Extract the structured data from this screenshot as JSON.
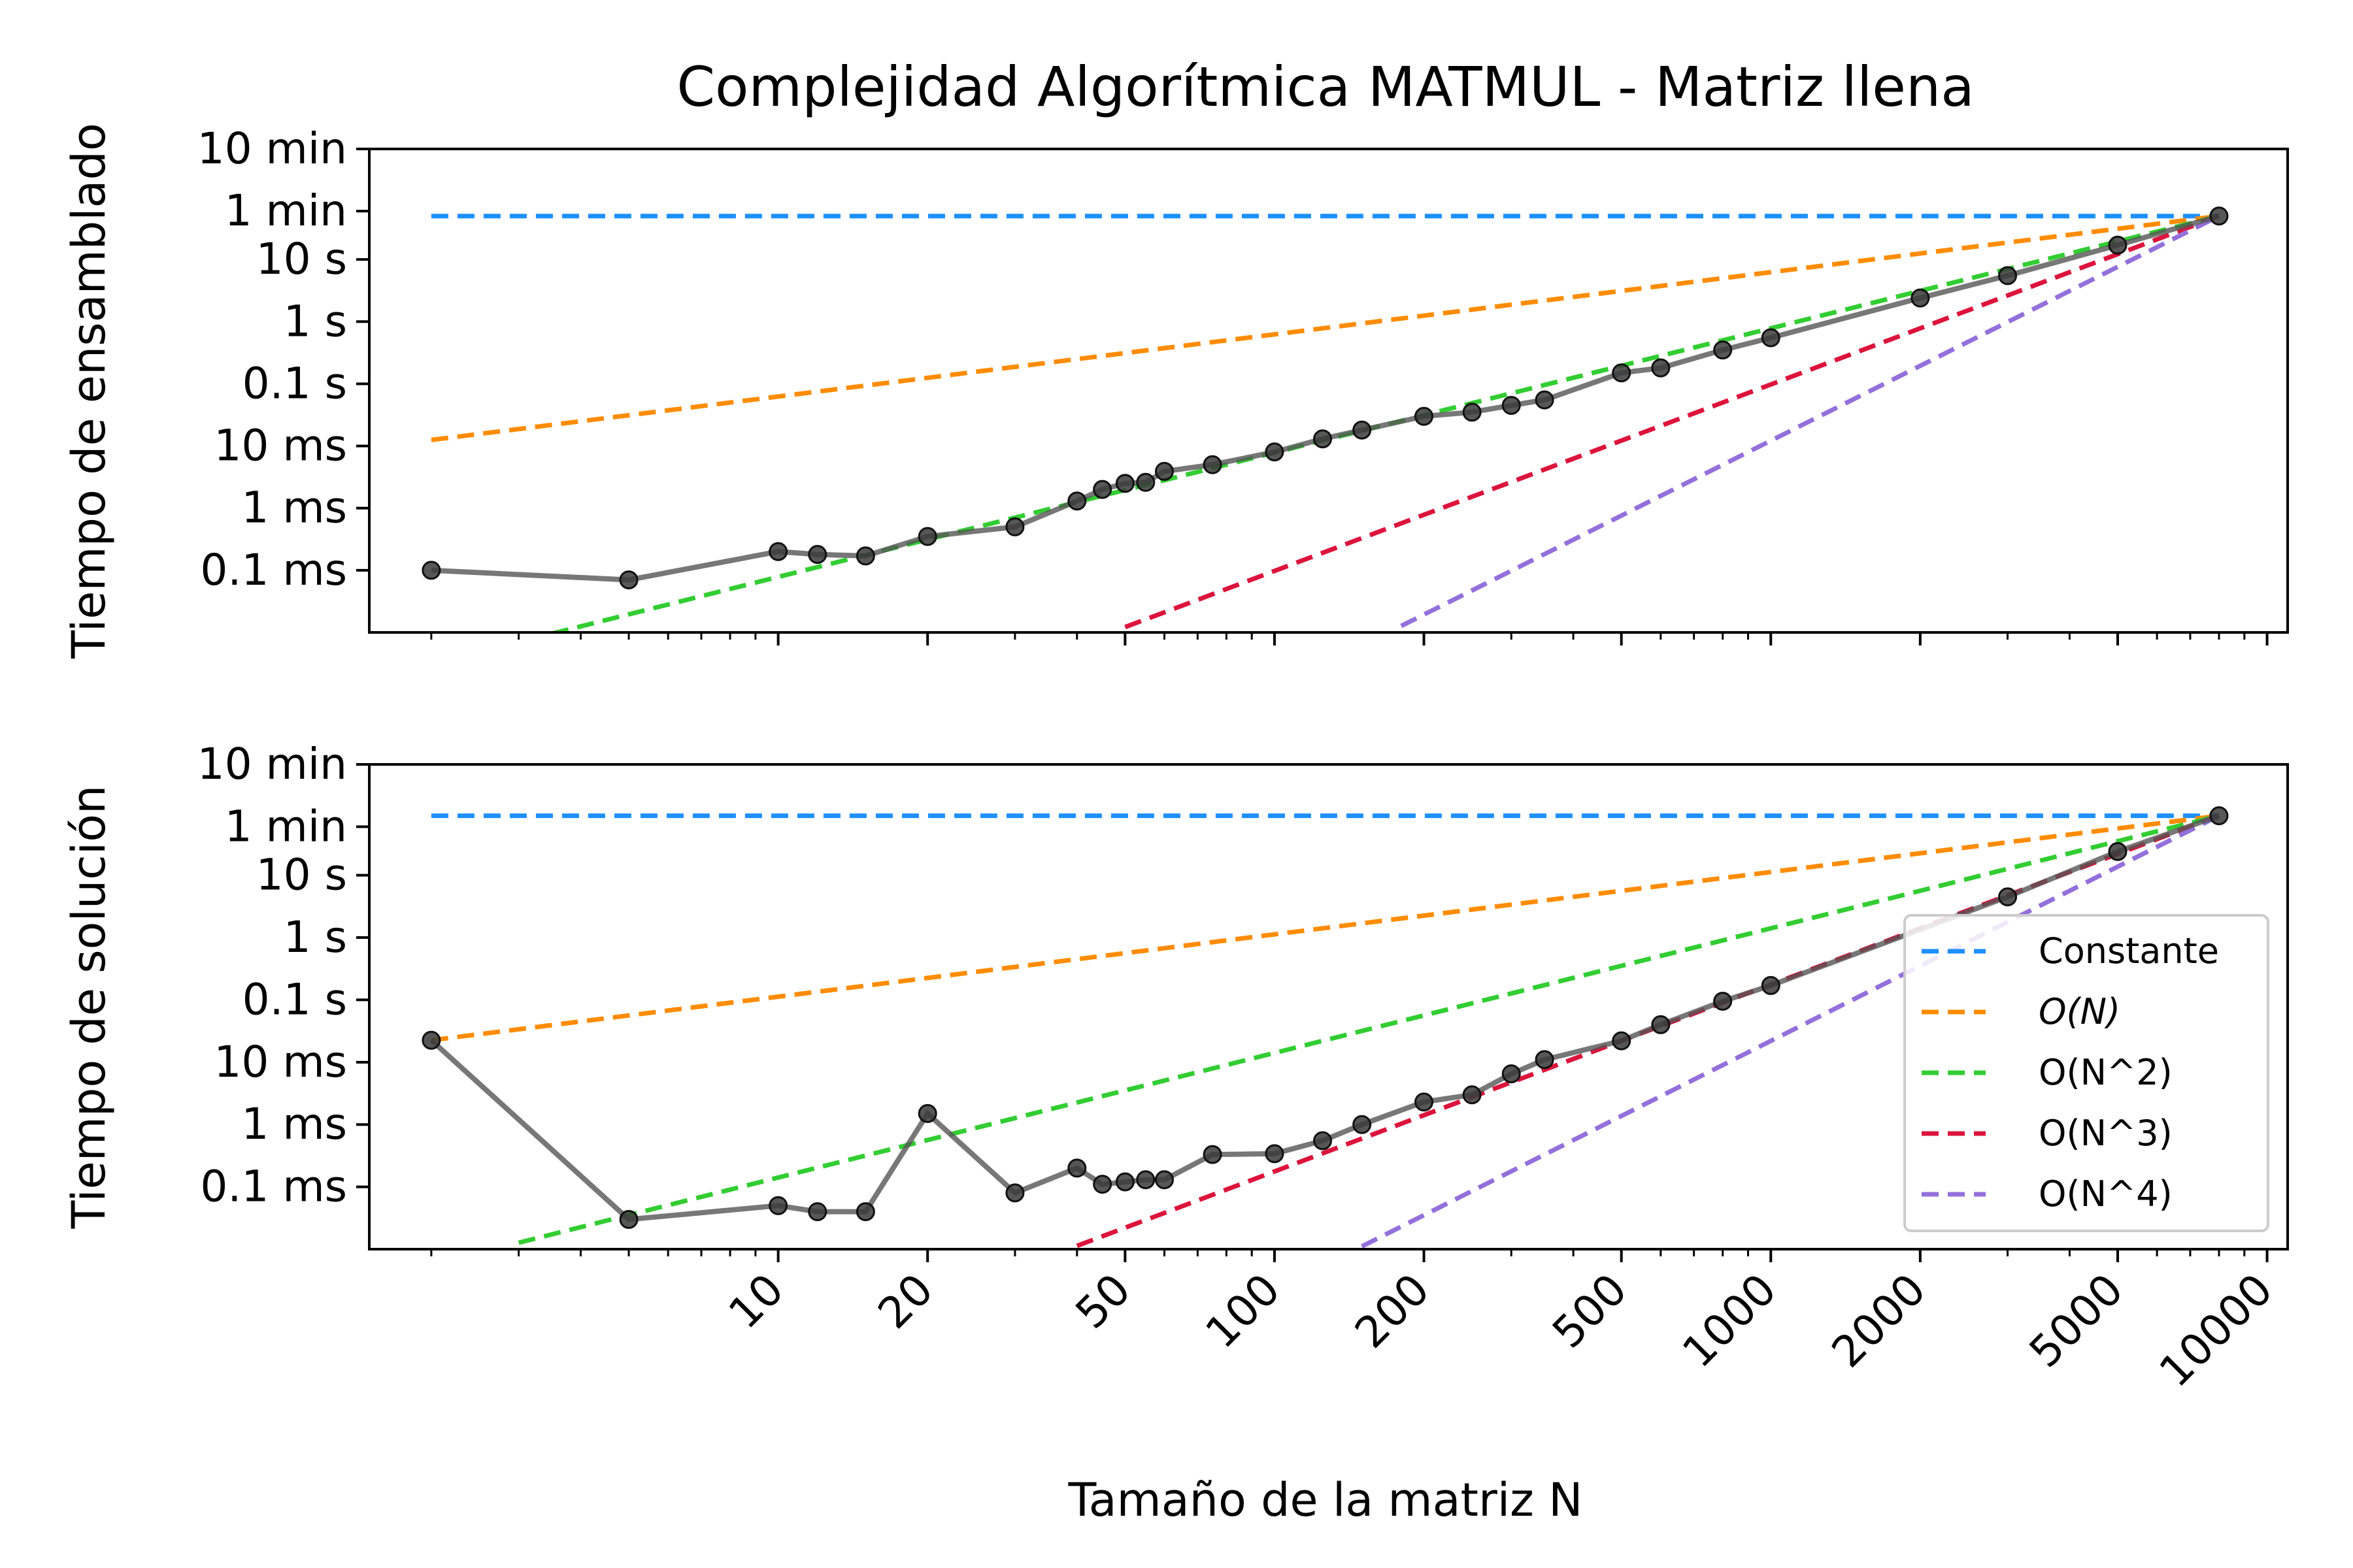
{
  "figure": {
    "title": "Complejidad Algorítmica MATMUL - Matriz llena",
    "xlabel": "Tamaño de la matriz N"
  },
  "chart_data": [
    {
      "type": "line",
      "panel": "top",
      "ylabel": "Tiempo de ensamblado",
      "x_scale": "log",
      "y_scale": "log",
      "xlim": [
        1.5,
        11000
      ],
      "ylim_seconds": [
        1e-05,
        600
      ],
      "xticks": [
        10,
        20,
        50,
        100,
        200,
        500,
        1000,
        2000,
        5000,
        10000
      ],
      "xtick_labels": [
        "10",
        "20",
        "50",
        "100",
        "200",
        "500",
        "1000",
        "2000",
        "5000",
        "10000"
      ],
      "yticks_seconds": [
        0.0001,
        0.001,
        0.01,
        0.1,
        1,
        10,
        60,
        600
      ],
      "ytick_labels": [
        "0.1 ms",
        "1 ms",
        "10 ms",
        "0.1 s",
        "1 s",
        "10 s",
        "1 min",
        "10 min"
      ],
      "grid": false,
      "legend": false,
      "series": [
        {
          "name": "Constante",
          "color": "#1e90ff",
          "dash": true,
          "x": [
            2,
            8000
          ],
          "y": [
            50,
            50
          ]
        },
        {
          "name": "O(N)",
          "color": "#ff8c00",
          "dash": true,
          "x": [
            2,
            8000
          ],
          "y": [
            0.0125,
            50
          ]
        },
        {
          "name": "O(N^2)",
          "color": "#32cd32",
          "dash": true,
          "x": [
            3.5,
            8000
          ],
          "y": [
            9.57e-06,
            50
          ]
        },
        {
          "name": "O(N^3)",
          "color": "#dc143c",
          "dash": true,
          "x": [
            50,
            8000
          ],
          "y": [
            1.22e-05,
            50
          ]
        },
        {
          "name": "O(N^4)",
          "color": "#9370db",
          "dash": true,
          "x": [
            180,
            8000
          ],
          "y": [
            1.27e-05,
            50
          ]
        },
        {
          "name": "",
          "color": "#555555",
          "dash": false,
          "markers": true,
          "x": [
            2,
            5,
            10,
            12,
            15,
            20,
            30,
            40,
            45,
            50,
            55,
            60,
            75,
            100,
            125,
            150,
            200,
            250,
            300,
            350,
            500,
            600,
            800,
            1000,
            2000,
            3000,
            5000,
            8000
          ],
          "y": [
            0.0001,
            7e-05,
            0.0002,
            0.00018,
            0.00017,
            0.00035,
            0.0005,
            0.0013,
            0.002,
            0.0025,
            0.0026,
            0.0039,
            0.005,
            0.008,
            0.013,
            0.018,
            0.03,
            0.035,
            0.045,
            0.055,
            0.15,
            0.18,
            0.35,
            0.55,
            2.4,
            5.5,
            17,
            50
          ]
        }
      ]
    },
    {
      "type": "line",
      "panel": "bottom",
      "ylabel": "Tiempo de solución",
      "x_scale": "log",
      "y_scale": "log",
      "xlim": [
        1.5,
        11000
      ],
      "ylim_seconds": [
        1e-05,
        600
      ],
      "xticks": [
        10,
        20,
        50,
        100,
        200,
        500,
        1000,
        2000,
        5000,
        10000
      ],
      "xtick_labels": [
        "10",
        "20",
        "50",
        "100",
        "200",
        "500",
        "1000",
        "2000",
        "5000",
        "10000"
      ],
      "yticks_seconds": [
        0.0001,
        0.001,
        0.01,
        0.1,
        1,
        10,
        60,
        600
      ],
      "ytick_labels": [
        "0.1 ms",
        "1 ms",
        "10 ms",
        "0.1 s",
        "1 s",
        "10 s",
        "1 min",
        "10 min"
      ],
      "grid": false,
      "legend": "lower right",
      "series": [
        {
          "name": "Constante",
          "color": "#1e90ff",
          "dash": true,
          "x": [
            2,
            8000
          ],
          "y": [
            90,
            90
          ]
        },
        {
          "name": "O(N)",
          "color": "#ff8c00",
          "dash": true,
          "x": [
            2,
            8000
          ],
          "y": [
            0.0225,
            90
          ]
        },
        {
          "name": "O(N^2)",
          "color": "#32cd32",
          "dash": true,
          "x": [
            3,
            8000
          ],
          "y": [
            1.27e-05,
            90
          ]
        },
        {
          "name": "O(N^3)",
          "color": "#dc143c",
          "dash": true,
          "x": [
            40,
            8000
          ],
          "y": [
            1.13e-05,
            90
          ]
        },
        {
          "name": "O(N^4)",
          "color": "#9370db",
          "dash": true,
          "x": [
            150,
            8000
          ],
          "y": [
            1.11e-05,
            90
          ]
        },
        {
          "name": "",
          "color": "#555555",
          "dash": false,
          "markers": true,
          "x": [
            2,
            5,
            10,
            12,
            15,
            20,
            30,
            40,
            45,
            50,
            55,
            60,
            75,
            100,
            125,
            150,
            200,
            250,
            300,
            350,
            500,
            600,
            800,
            1000,
            3000,
            5000,
            8000
          ],
          "y": [
            0.0225,
            3e-05,
            5e-05,
            4e-05,
            4e-05,
            0.0015,
            8e-05,
            0.0002,
            0.00011,
            0.00012,
            0.00013,
            0.00013,
            0.00033,
            0.00034,
            0.00055,
            0.001,
            0.0023,
            0.003,
            0.0065,
            0.011,
            0.022,
            0.04,
            0.095,
            0.17,
            4.5,
            24,
            90
          ]
        }
      ]
    }
  ],
  "legend": {
    "entries": [
      {
        "label": "Constante",
        "color": "#1e90ff"
      },
      {
        "label": "O(N)",
        "color": "#ff8c00",
        "italic": true
      },
      {
        "label": "O(N^2)",
        "color": "#32cd32"
      },
      {
        "label": "O(N^3)",
        "color": "#dc143c"
      },
      {
        "label": "O(N^4)",
        "color": "#9370db"
      }
    ]
  },
  "colors": {
    "data_line": "#555555",
    "marker": "#333333"
  }
}
